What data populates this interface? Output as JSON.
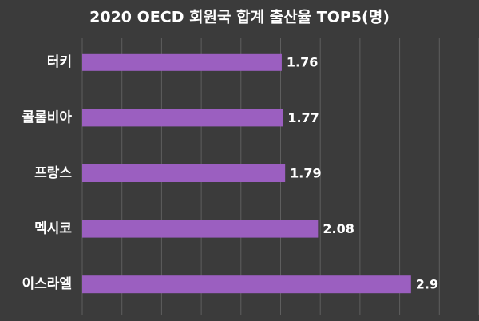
{
  "chart_data": {
    "type": "bar",
    "orientation": "horizontal",
    "title": "2020 OECD 회원국 합계 출산율 TOP5(명)",
    "categories": [
      "터키",
      "콜롬비아",
      "프랑스",
      "멕시코",
      "이스라엘"
    ],
    "values": [
      1.76,
      1.77,
      1.79,
      2.08,
      2.9
    ],
    "color": "#9b5fc0",
    "xlim": [
      0,
      3.5
    ],
    "xticks": [
      0,
      0.35,
      0.7,
      1.05,
      1.4,
      1.75,
      2.1,
      2.45,
      2.8,
      3.15,
      3.5
    ],
    "grid": true
  }
}
